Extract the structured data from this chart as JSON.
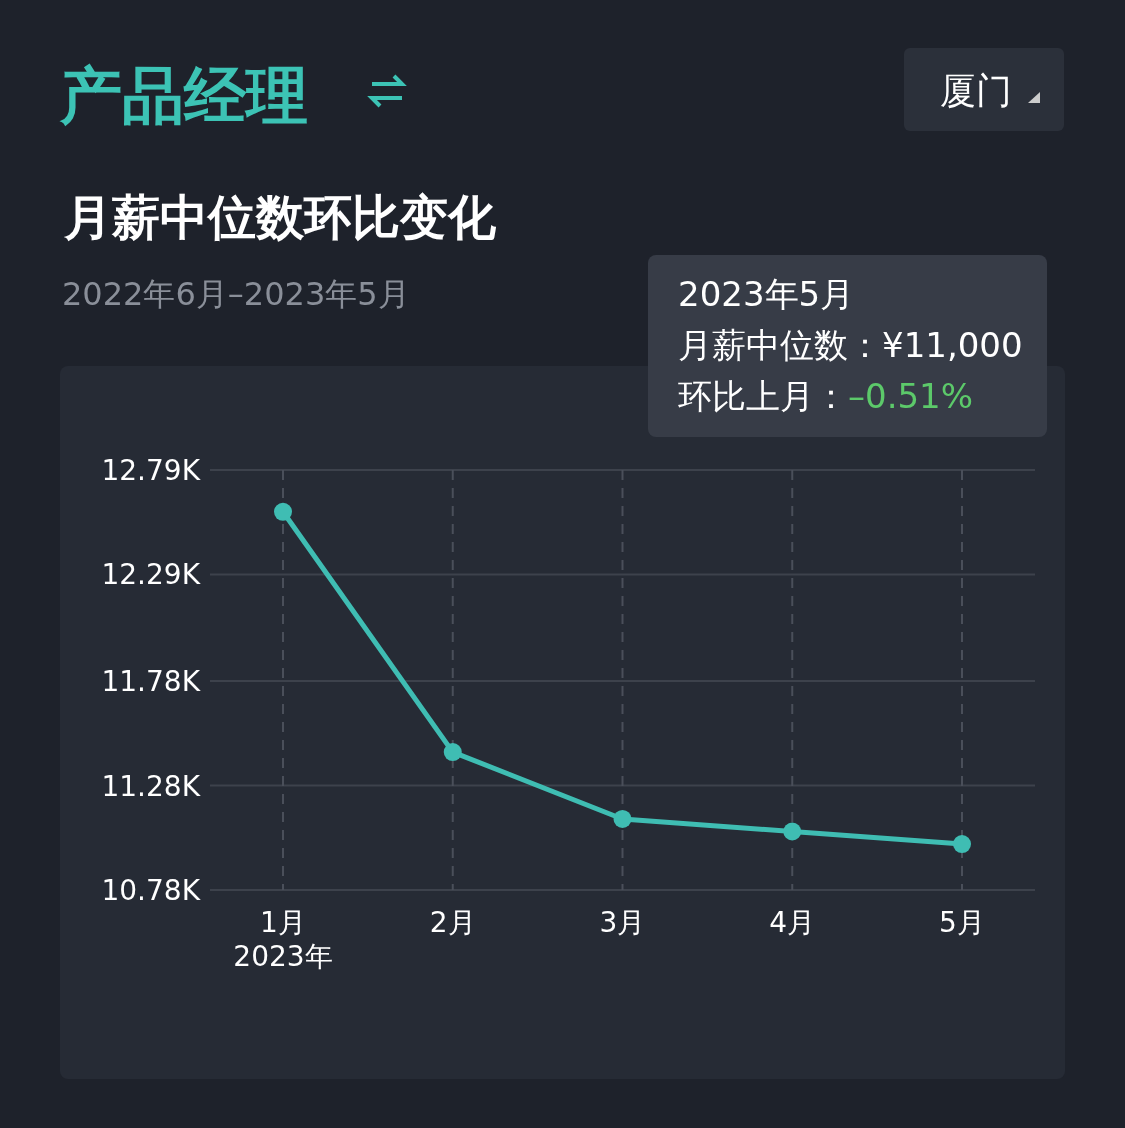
{
  "chart_data": {
    "type": "line",
    "title": "产品经理",
    "subtitle": "月薪中位数环比变化",
    "annotations": [
      "厦门",
      "2022年6月–2023年5月",
      "2023年5月",
      "月薪中位数：¥11,000",
      "环比上月：",
      "–0.51%"
    ],
    "categories": [
      "1月\n2023年",
      "2月",
      "3月",
      "4月",
      "5月"
    ],
    "series": [
      {
        "color": "#3fbdb3",
        "values": [
          12.59,
          11.44,
          11.12,
          11.06,
          11.0
        ]
      }
    ],
    "ylim": [
      10.78,
      12.79
    ],
    "yticks": [
      {
        "value": 10.78,
        "label": "10.78K"
      },
      {
        "value": 11.28,
        "label": "11.28K"
      },
      {
        "value": 11.78,
        "label": "11.78K"
      },
      {
        "value": 12.29,
        "label": "12.29K"
      },
      {
        "value": 12.79,
        "label": "12.79K"
      }
    ],
    "grid": true,
    "marker": "circle"
  }
}
